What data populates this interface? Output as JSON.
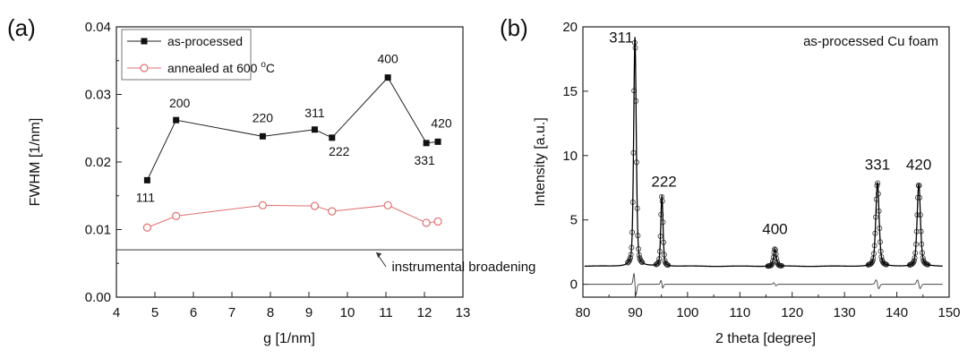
{
  "chart_data": [
    {
      "type": "line",
      "panel_label": "(a)",
      "xlabel": "g [1/nm]",
      "ylabel": "FWHM [1/nm]",
      "xlim": [
        4,
        13
      ],
      "ylim": [
        0.0,
        0.04
      ],
      "xticks": [
        "4",
        "5",
        "6",
        "7",
        "8",
        "9",
        "10",
        "11",
        "12",
        "13"
      ],
      "yticks": [
        "0.00",
        "0.01",
        "0.02",
        "0.03",
        "0.04"
      ],
      "series": [
        {
          "name": "as-processed",
          "marker": "filled-square",
          "color": "#222222",
          "x": [
            4.8,
            5.55,
            7.8,
            9.15,
            9.6,
            11.05,
            12.05,
            12.35
          ],
          "y": [
            0.0173,
            0.0262,
            0.0238,
            0.0248,
            0.0236,
            0.0325,
            0.0228,
            0.023
          ],
          "point_labels": [
            "111",
            "200",
            "220",
            "311",
            "222",
            "400",
            "331",
            "420"
          ]
        },
        {
          "name": "annealed at 600 oC",
          "label_main": "annealed at 600 ",
          "label_sup": "o",
          "label_end": "C",
          "marker": "open-circle",
          "color": "#e07070",
          "x": [
            4.8,
            5.55,
            7.8,
            9.15,
            9.6,
            11.05,
            12.05,
            12.35
          ],
          "y": [
            0.0103,
            0.012,
            0.0136,
            0.0135,
            0.0127,
            0.0136,
            0.011,
            0.0112
          ]
        }
      ],
      "reference_line": {
        "y": 0.007,
        "label": "instrumental broadening"
      },
      "legend_position": "top-left"
    },
    {
      "type": "line",
      "panel_label": "(b)",
      "xlabel": "2 theta [degree]",
      "ylabel": "Intensity [a.u.]",
      "xlim": [
        80,
        150
      ],
      "ylim": [
        -1,
        20
      ],
      "xticks": [
        "80",
        "90",
        "100",
        "110",
        "120",
        "130",
        "140",
        "150"
      ],
      "yticks": [
        "0",
        "5",
        "10",
        "15",
        "20"
      ],
      "annotation": "as-processed Cu foam",
      "baseline": 1.4,
      "peaks": [
        {
          "label": "311",
          "x": 89.95,
          "height": 19.2,
          "width": 0.35,
          "label_x": 87.3,
          "label_y": 18.8
        },
        {
          "label": "222",
          "x": 95.1,
          "height": 6.9,
          "width": 0.3,
          "label_x": 95.5,
          "label_y": 7.6
        },
        {
          "label": "400",
          "x": 116.7,
          "height": 2.75,
          "width": 0.35,
          "label_x": 116.7,
          "label_y": 3.9
        },
        {
          "label": "331",
          "x": 136.3,
          "height": 7.9,
          "width": 0.45,
          "label_x": 136.3,
          "label_y": 8.9
        },
        {
          "label": "420",
          "x": 144.2,
          "height": 7.8,
          "width": 0.45,
          "label_x": 144.2,
          "label_y": 8.9
        }
      ],
      "difference_offset": 0,
      "series": [
        {
          "name": "observed",
          "marker": "open-circle"
        },
        {
          "name": "fit",
          "marker": "none"
        },
        {
          "name": "difference",
          "marker": "none"
        }
      ]
    }
  ]
}
